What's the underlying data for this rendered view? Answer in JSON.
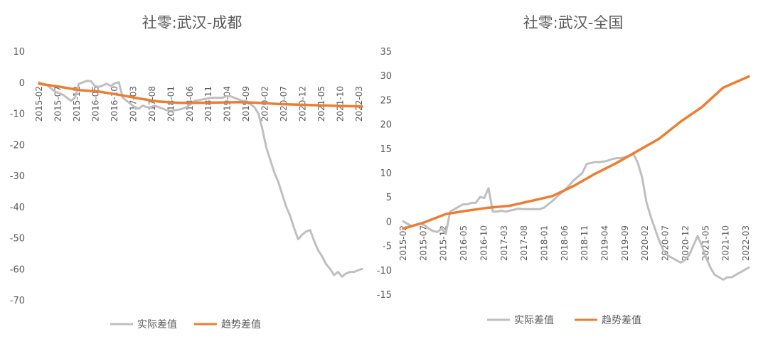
{
  "chart_data": [
    {
      "type": "line",
      "title": "社零:武汉-成都",
      "xlabel": "",
      "ylabel": "",
      "ylim": [
        -70,
        10
      ],
      "ytick_step": 10,
      "grid": false,
      "legend_position": "bottom",
      "x_tick_labels": [
        "2015-02",
        "2015-07",
        "2015-12",
        "2016-05",
        "2016-10",
        "2017-03",
        "2017-08",
        "2018-01",
        "2018-06",
        "2018-11",
        "2019-04",
        "2019-09",
        "2020-02",
        "2020-07",
        "2020-12",
        "2021-05",
        "2021-10",
        "2022-03"
      ],
      "series": [
        {
          "name": "实际差值",
          "color": "#BFBFBF",
          "points": [
            [
              0,
              0
            ],
            [
              1,
              -0.5
            ],
            [
              2,
              -1
            ],
            [
              3,
              -2
            ],
            [
              4,
              -3
            ],
            [
              5,
              -3.5
            ],
            [
              6,
              -4
            ],
            [
              7,
              -5
            ],
            [
              8,
              -6
            ],
            [
              9,
              -5
            ],
            [
              10,
              -0.5
            ],
            [
              11,
              0
            ],
            [
              12,
              0.5
            ],
            [
              13,
              0.3
            ],
            [
              14,
              -1.2
            ],
            [
              15,
              -1.5
            ],
            [
              16,
              -1
            ],
            [
              17,
              -0.5
            ],
            [
              18,
              -1.2
            ],
            [
              19,
              -0.3
            ],
            [
              20,
              0
            ],
            [
              21,
              -5
            ],
            [
              22,
              -6
            ],
            [
              23,
              -7
            ],
            [
              24,
              -8
            ],
            [
              25,
              -8.5
            ],
            [
              26,
              -7.5
            ],
            [
              27,
              -8
            ],
            [
              28,
              -8
            ],
            [
              29,
              -7.5
            ],
            [
              30,
              -8
            ],
            [
              31,
              -8.5
            ],
            [
              32,
              -9
            ],
            [
              33,
              -9.2
            ],
            [
              34,
              -9
            ],
            [
              35,
              -8.8
            ],
            [
              36,
              -8.5
            ],
            [
              37,
              -8
            ],
            [
              38,
              -7
            ],
            [
              39,
              -6
            ],
            [
              40,
              -5.8
            ],
            [
              41,
              -5.5
            ],
            [
              42,
              -5.3
            ],
            [
              43,
              -5
            ],
            [
              44,
              -5
            ],
            [
              45,
              -5
            ],
            [
              46,
              -5
            ],
            [
              47,
              -4.5
            ],
            [
              48,
              -4.5
            ],
            [
              49,
              -5
            ],
            [
              50,
              -5.5
            ],
            [
              51,
              -6
            ],
            [
              52,
              -6
            ],
            [
              53,
              -7
            ],
            [
              54,
              -8
            ],
            [
              55,
              -10
            ],
            [
              56,
              -15
            ],
            [
              57,
              -21
            ],
            [
              58,
              -25
            ],
            [
              59,
              -29
            ],
            [
              60,
              -32
            ],
            [
              61,
              -36
            ],
            [
              62,
              -40
            ],
            [
              63,
              -43
            ],
            [
              64,
              -47
            ],
            [
              65,
              -50.5
            ],
            [
              66,
              -49
            ],
            [
              67,
              -48
            ],
            [
              68,
              -47.5
            ],
            [
              69,
              -51
            ],
            [
              70,
              -54
            ],
            [
              71,
              -56
            ],
            [
              72,
              -58.5
            ],
            [
              73,
              -60
            ],
            [
              74,
              -62
            ],
            [
              75,
              -61
            ],
            [
              76,
              -62.5
            ],
            [
              77,
              -61.5
            ],
            [
              78,
              -61
            ],
            [
              79,
              -61
            ],
            [
              80,
              -60.5
            ],
            [
              81,
              -60
            ]
          ]
        },
        {
          "name": "趋势差值",
          "color": "#ED7D31",
          "points": [
            [
              0,
              -0.5
            ],
            [
              5,
              -1.4
            ],
            [
              10,
              -2.5
            ],
            [
              15,
              -3
            ],
            [
              20,
              -4
            ],
            [
              25,
              -5.2
            ],
            [
              30,
              -6.2
            ],
            [
              35,
              -6.6
            ],
            [
              40,
              -6.6
            ],
            [
              45,
              -6.5
            ],
            [
              50,
              -6.4
            ],
            [
              55,
              -6.6
            ],
            [
              60,
              -7
            ],
            [
              65,
              -7.2
            ],
            [
              70,
              -7.4
            ],
            [
              75,
              -7.6
            ],
            [
              81,
              -7.8
            ]
          ]
        }
      ]
    },
    {
      "type": "line",
      "title": "社零:武汉-全国",
      "xlabel": "",
      "ylabel": "",
      "ylim": [
        -15,
        35
      ],
      "ytick_step": 5,
      "grid": false,
      "legend_position": "bottom",
      "x_tick_labels": [
        "2015-02",
        "2015-07",
        "2015-12",
        "2016-05",
        "2016-10",
        "2017-03",
        "2017-08",
        "2018-01",
        "2018-06",
        "2018-11",
        "2019-04",
        "2019-09",
        "2020-02",
        "2020-07",
        "2020-12",
        "2021-05",
        "2021-10",
        "2022-03"
      ],
      "series": [
        {
          "name": "实际差值",
          "color": "#BFBFBF",
          "points": [
            [
              0,
              0
            ],
            [
              1,
              -0.5
            ],
            [
              2,
              -1
            ],
            [
              3,
              -0.7
            ],
            [
              4,
              -0.5
            ],
            [
              5,
              -0.8
            ],
            [
              6,
              -1.5
            ],
            [
              7,
              -2
            ],
            [
              8,
              -2.2
            ],
            [
              9,
              -1.5
            ],
            [
              10,
              -2.5
            ],
            [
              11,
              2
            ],
            [
              12,
              2.5
            ],
            [
              13,
              3
            ],
            [
              14,
              3.5
            ],
            [
              15,
              3.5
            ],
            [
              16,
              3.8
            ],
            [
              17,
              3.8
            ],
            [
              18,
              5
            ],
            [
              19,
              4.8
            ],
            [
              20,
              6.8
            ],
            [
              21,
              2
            ],
            [
              22,
              2
            ],
            [
              23,
              2.2
            ],
            [
              24,
              2
            ],
            [
              25,
              2.2
            ],
            [
              26,
              2.4
            ],
            [
              27,
              2.6
            ],
            [
              28,
              2.5
            ],
            [
              29,
              2.5
            ],
            [
              30,
              2.5
            ],
            [
              31,
              2.5
            ],
            [
              32,
              2.5
            ],
            [
              33,
              2.8
            ],
            [
              34,
              3.5
            ],
            [
              35,
              4.2
            ],
            [
              36,
              5
            ],
            [
              37,
              5.8
            ],
            [
              38,
              6.5
            ],
            [
              39,
              7.5
            ],
            [
              40,
              8.5
            ],
            [
              41,
              9.2
            ],
            [
              42,
              10
            ],
            [
              43,
              11.8
            ],
            [
              44,
              12
            ],
            [
              45,
              12.2
            ],
            [
              46,
              12.2
            ],
            [
              47,
              12.3
            ],
            [
              48,
              12.5
            ],
            [
              49,
              12.8
            ],
            [
              50,
              13
            ],
            [
              51,
              13
            ],
            [
              52,
              13.2
            ],
            [
              53,
              13.5
            ],
            [
              54,
              13.8
            ],
            [
              55,
              12
            ],
            [
              56,
              9
            ],
            [
              57,
              4
            ],
            [
              58,
              1
            ],
            [
              59,
              -1.5
            ],
            [
              60,
              -4
            ],
            [
              61,
              -6
            ],
            [
              62,
              -7
            ],
            [
              63,
              -7.5
            ],
            [
              64,
              -8
            ],
            [
              65,
              -8.5
            ],
            [
              66,
              -8
            ],
            [
              67,
              -7
            ],
            [
              68,
              -5
            ],
            [
              69,
              -3
            ],
            [
              70,
              -5
            ],
            [
              71,
              -7.5
            ],
            [
              72,
              -9.5
            ],
            [
              73,
              -11
            ],
            [
              74,
              -11.5
            ],
            [
              75,
              -12
            ],
            [
              76,
              -11.5
            ],
            [
              77,
              -11.5
            ],
            [
              78,
              -11
            ],
            [
              79,
              -10.5
            ],
            [
              80,
              -10
            ],
            [
              81,
              -9.5
            ]
          ]
        },
        {
          "name": "趋势差值",
          "color": "#ED7D31",
          "points": [
            [
              0,
              -1.5
            ],
            [
              5,
              -0.2
            ],
            [
              10,
              1.5
            ],
            [
              15,
              2.2
            ],
            [
              20,
              2.8
            ],
            [
              25,
              3.2
            ],
            [
              30,
              4.2
            ],
            [
              35,
              5.2
            ],
            [
              40,
              7.3
            ],
            [
              45,
              9.8
            ],
            [
              50,
              12
            ],
            [
              55,
              14.5
            ],
            [
              60,
              17
            ],
            [
              65,
              20.5
            ],
            [
              70,
              23.5
            ],
            [
              75,
              27.5
            ],
            [
              81,
              29.8
            ]
          ]
        }
      ]
    }
  ]
}
